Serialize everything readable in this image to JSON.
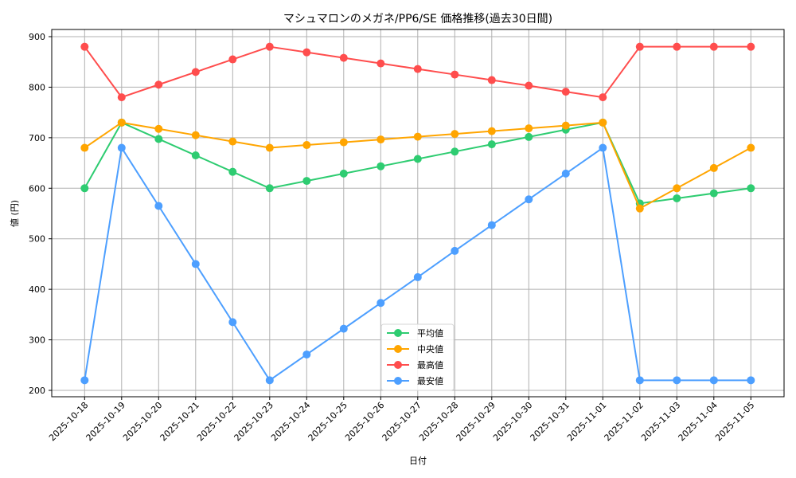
{
  "chart_data": {
    "type": "line",
    "title": "マシュマロンのメガネ/PP6/SE 価格推移(過去30日間)",
    "xlabel": "日付",
    "ylabel": "値 (円)",
    "ylim": [
      190,
      915
    ],
    "yticks": [
      200,
      300,
      400,
      500,
      600,
      700,
      800,
      900
    ],
    "grid": true,
    "legend_position": "lower center",
    "categories": [
      "2025-10-18",
      "2025-10-19",
      "2025-10-20",
      "2025-10-21",
      "2025-10-22",
      "2025-10-23",
      "2025-10-24",
      "2025-10-25",
      "2025-10-26",
      "2025-10-27",
      "2025-10-28",
      "2025-10-29",
      "2025-10-30",
      "2025-10-31",
      "2025-11-01",
      "2025-11-02",
      "2025-11-03",
      "2025-11-04",
      "2025-11-05"
    ],
    "series": [
      {
        "name": "平均値",
        "color": "#2ECC71",
        "values": [
          600,
          730,
          697.5,
          665,
          632.5,
          600,
          614.5,
          629,
          643.5,
          658,
          672.5,
          687,
          701.5,
          716,
          730,
          570,
          580,
          590,
          600
        ]
      },
      {
        "name": "中央値",
        "color": "#FFA500",
        "values": [
          680,
          730,
          717.5,
          705,
          692.5,
          680,
          685.5,
          691,
          696.5,
          702,
          707.5,
          713,
          718.5,
          724,
          730,
          560,
          600,
          640,
          680
        ]
      },
      {
        "name": "最高値",
        "color": "#FF4D4D",
        "values": [
          880,
          780,
          805,
          830,
          855,
          880,
          869,
          858,
          847,
          836,
          825,
          814,
          803,
          791,
          780,
          880,
          880,
          880,
          880
        ]
      },
      {
        "name": "最安値",
        "color": "#4D9FFF",
        "values": [
          220,
          680,
          565,
          450,
          335,
          220,
          271,
          322,
          373,
          424,
          476,
          527,
          578,
          629,
          680,
          220,
          220,
          220,
          220
        ]
      }
    ]
  }
}
